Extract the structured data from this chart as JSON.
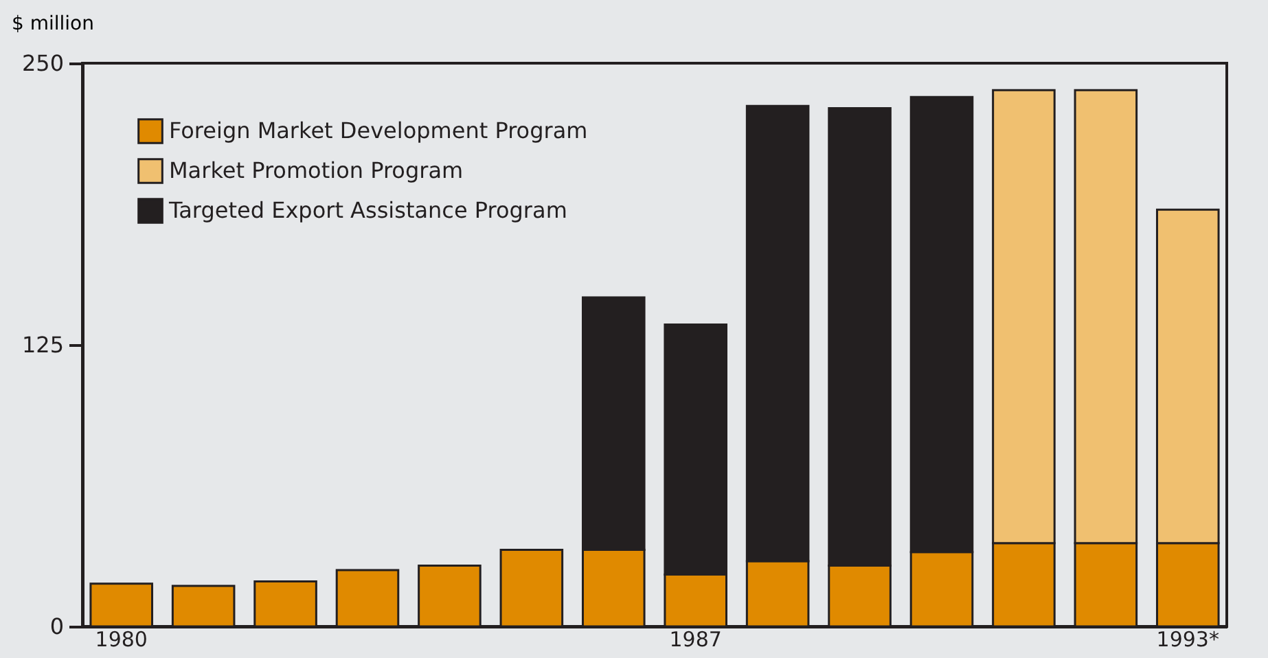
{
  "chart_data": {
    "type": "bar",
    "stacked": true,
    "ylabel": "$ million",
    "categories": [
      "1980",
      null,
      null,
      null,
      null,
      null,
      null,
      "1987",
      null,
      null,
      null,
      null,
      null,
      "1993*"
    ],
    "series": [
      {
        "name": "Foreign Market Development Program",
        "color": "#e08a00",
        "values": [
          19,
          18,
          20,
          25,
          27,
          34,
          34,
          23,
          29,
          27,
          33,
          37,
          37,
          37
        ]
      },
      {
        "name": "Market Promotion Program",
        "color": "#f0c070",
        "values": [
          null,
          null,
          null,
          null,
          null,
          null,
          null,
          null,
          null,
          null,
          null,
          201,
          201,
          148
        ]
      },
      {
        "name": "Targeted Export Assistance Program",
        "color": "#231f20",
        "values": [
          null,
          null,
          null,
          null,
          null,
          null,
          112,
          111,
          202,
          203,
          202,
          null,
          null,
          null
        ]
      }
    ],
    "ylim": [
      0,
      250
    ],
    "yticks": [
      0,
      125,
      250
    ],
    "grid": false,
    "legend": "top left"
  }
}
